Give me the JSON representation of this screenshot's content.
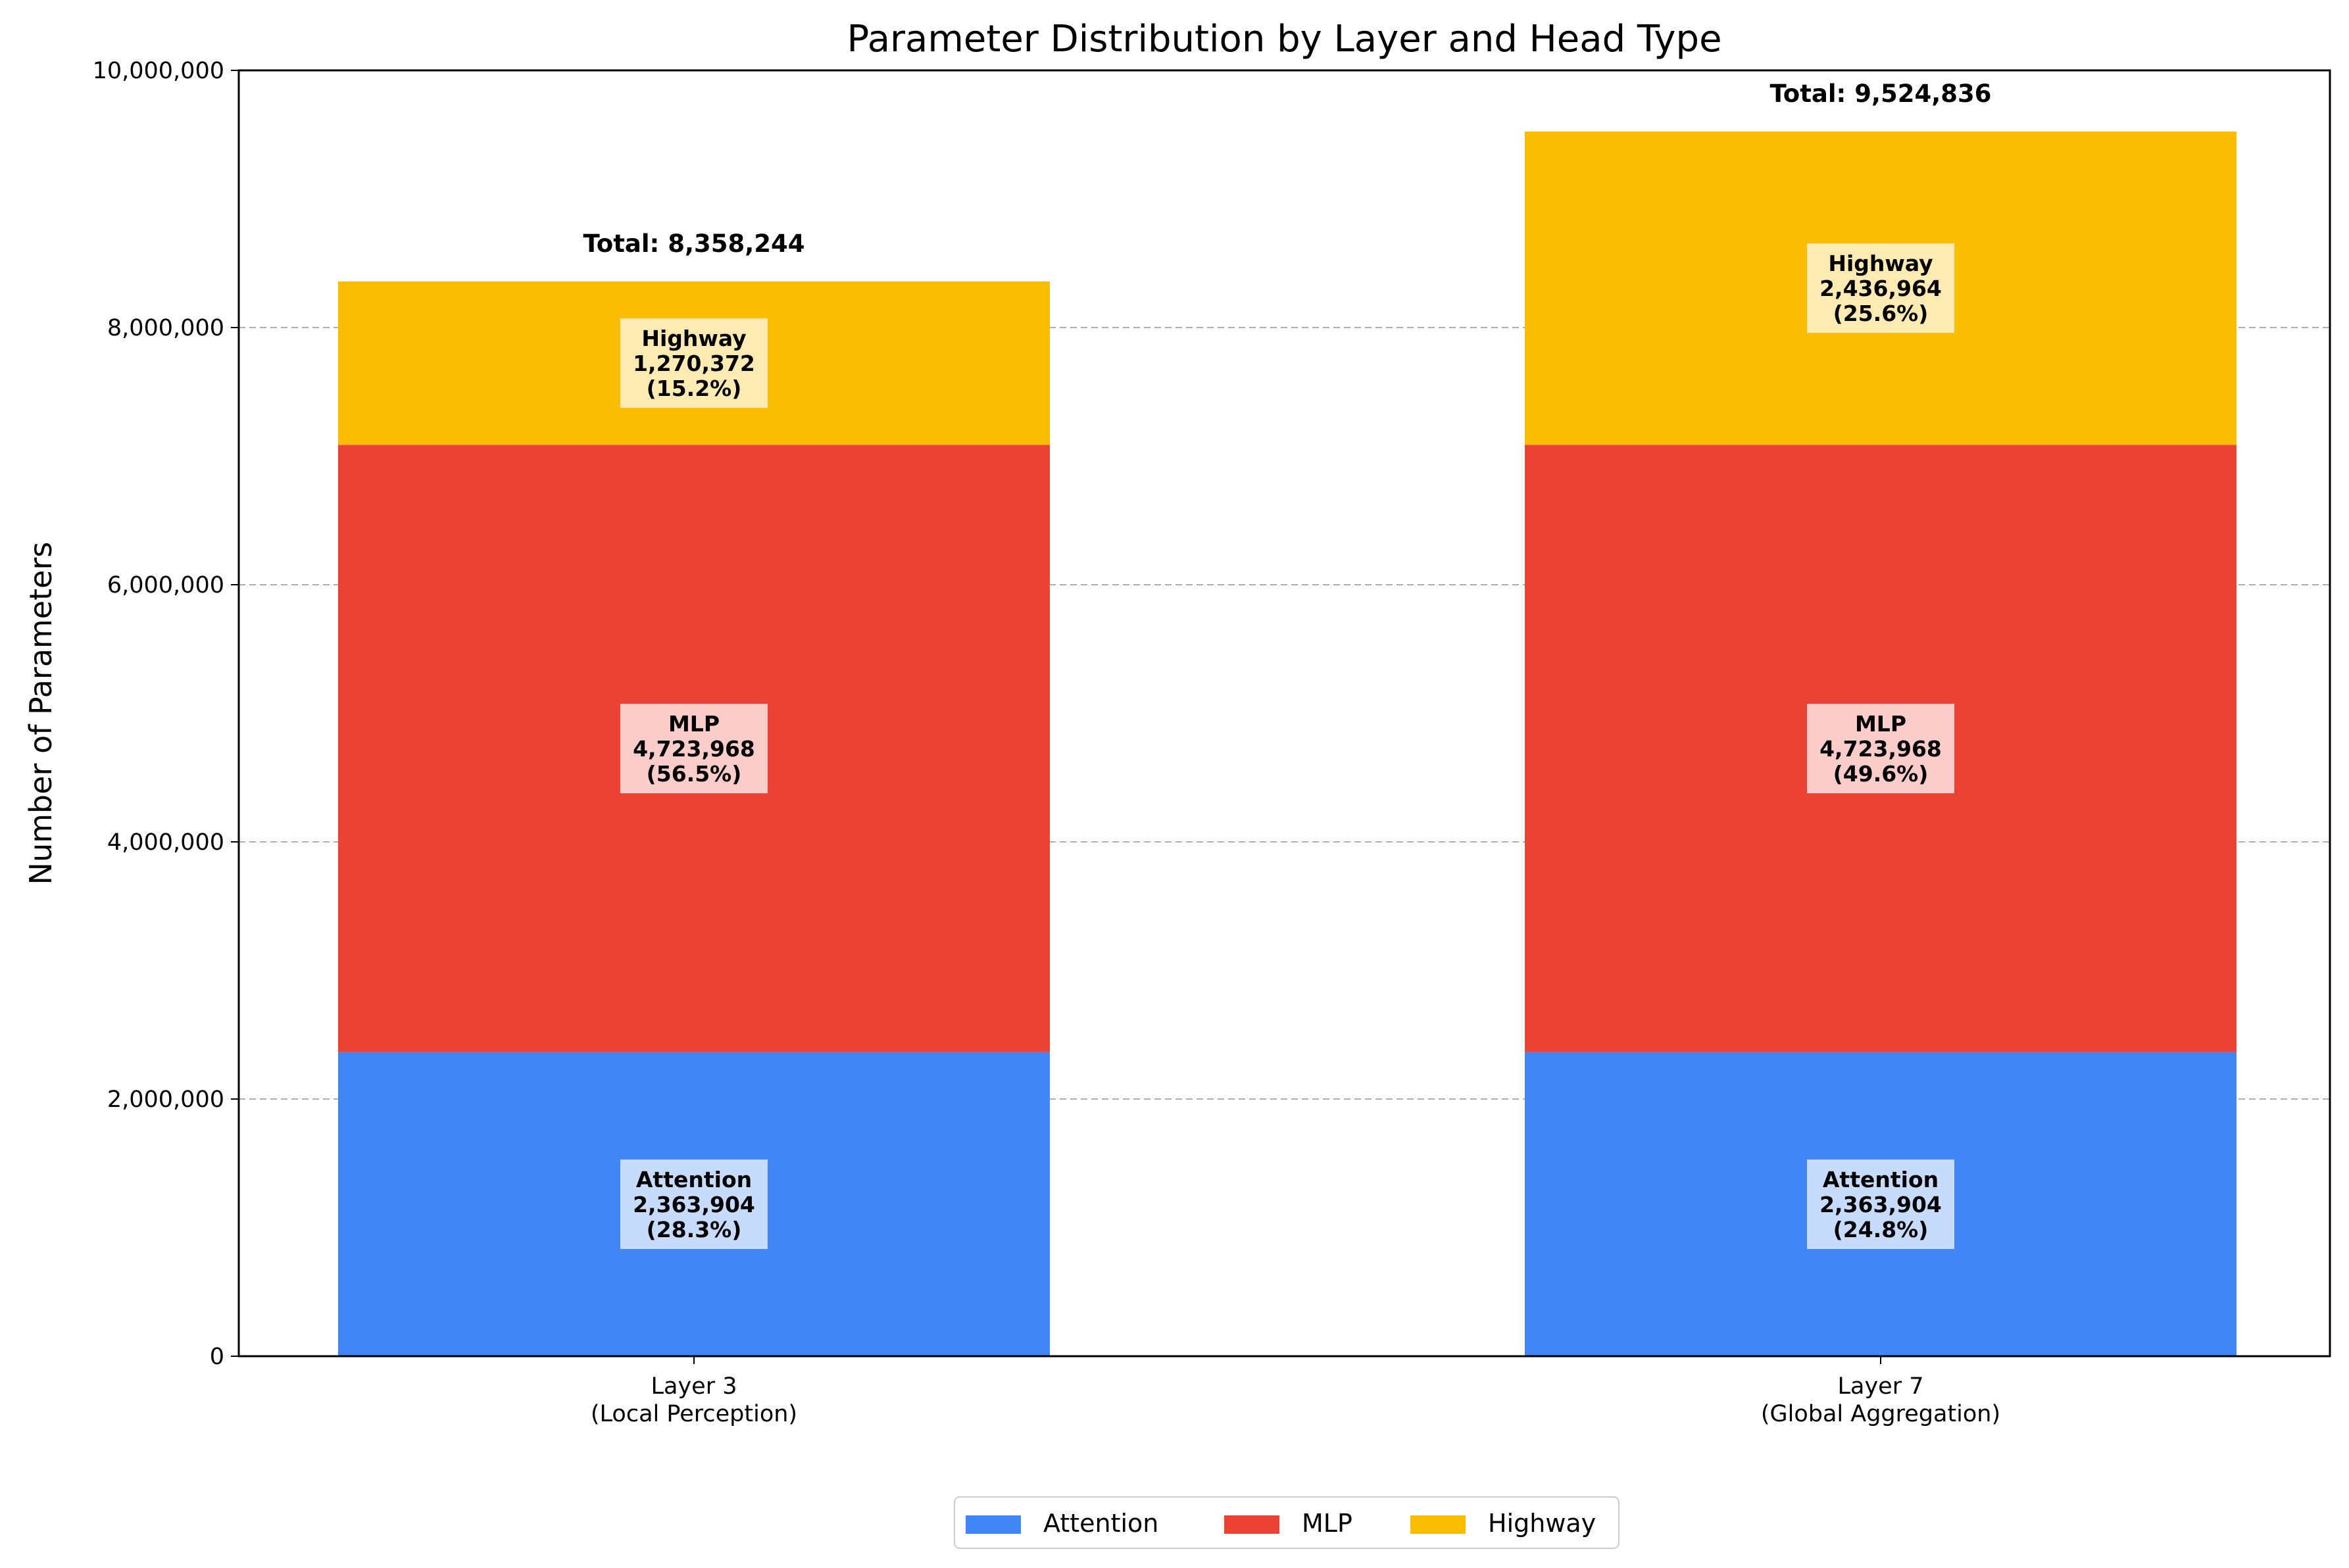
{
  "chart_data": {
    "type": "bar",
    "stacked": true,
    "title": "Parameter Distribution by Layer and Head Type",
    "xlabel": "",
    "ylabel": "Number of Parameters",
    "ylim": [
      0,
      10000000
    ],
    "yticks": [
      0,
      2000000,
      4000000,
      6000000,
      8000000,
      10000000
    ],
    "ytick_labels": [
      "0",
      "2,000,000",
      "4,000,000",
      "6,000,000",
      "8,000,000",
      "10,000,000"
    ],
    "grid": "y-dashed",
    "legend_position": "bottom-center",
    "categories": [
      [
        "Layer 3",
        "(Local Perception)"
      ],
      [
        "Layer 7",
        "(Global Aggregation)"
      ]
    ],
    "series": [
      {
        "name": "Attention",
        "color": "#4285f4",
        "label_bg": "#d3e3fd",
        "values": [
          2363904,
          2363904
        ],
        "value_labels": [
          "2,363,904",
          "2,363,904"
        ],
        "percent_labels": [
          "(28.3%)",
          "(24.8%)"
        ]
      },
      {
        "name": "MLP",
        "color": "#ea4335",
        "label_bg": "#fbd9d7",
        "values": [
          4723968,
          4723968
        ],
        "value_labels": [
          "4,723,968",
          "4,723,968"
        ],
        "percent_labels": [
          "(56.5%)",
          "(49.6%)"
        ]
      },
      {
        "name": "Highway",
        "color": "#fbbc04",
        "label_bg": "#feefc3",
        "values": [
          1270372,
          2436964
        ],
        "value_labels": [
          "1,270,372",
          "2,436,964"
        ],
        "percent_labels": [
          "(15.2%)",
          "(25.6%)"
        ]
      }
    ],
    "totals": [
      8358244,
      9524836
    ],
    "total_labels": [
      "Total: 8,358,244",
      "Total: 9,524,836"
    ]
  }
}
